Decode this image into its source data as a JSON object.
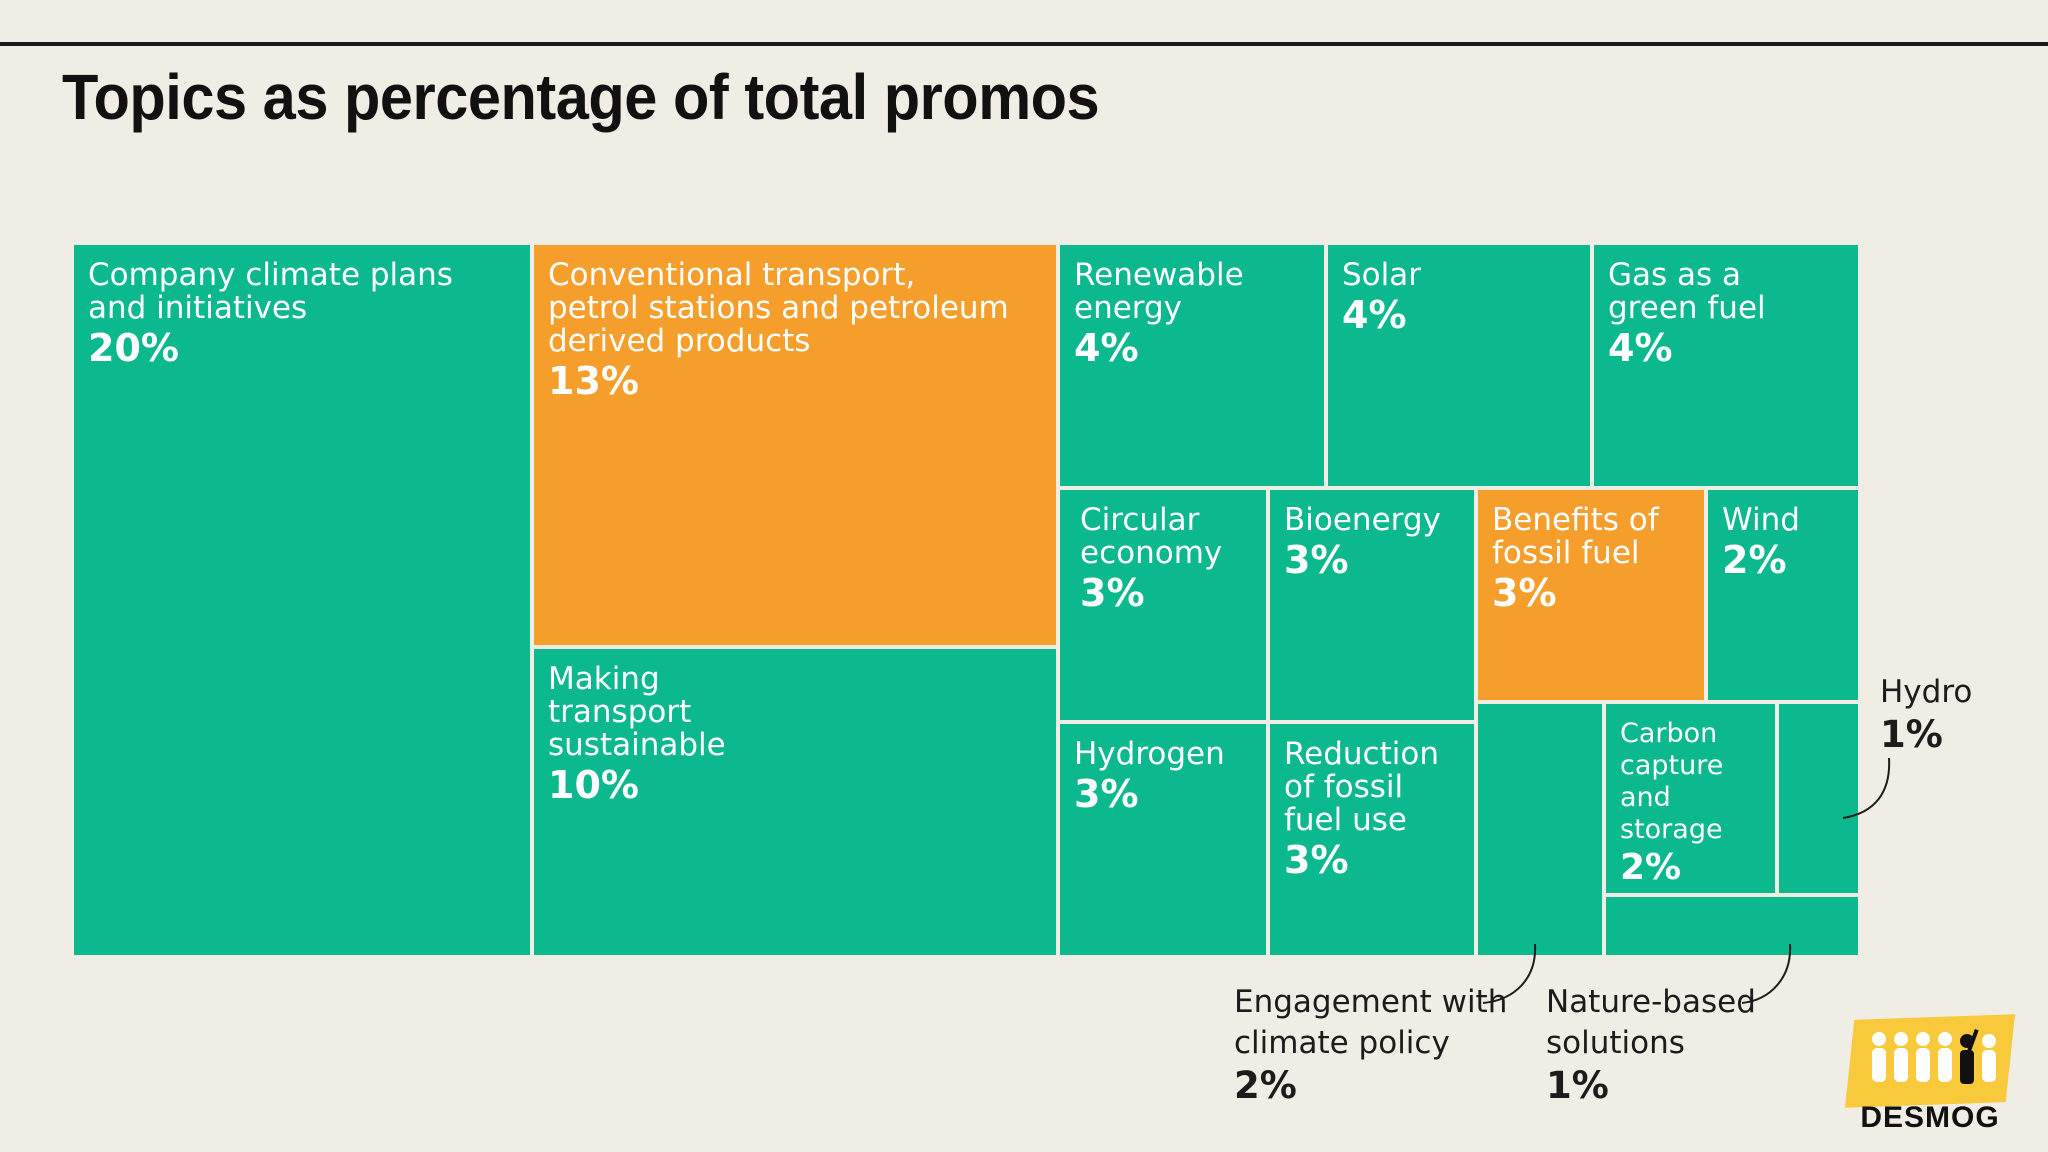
{
  "title": "Topics as percentage of total promos",
  "colors": {
    "green": "#0cb88e",
    "orange": "#f59e2c",
    "background": "#f0ede4"
  },
  "logo": {
    "word": "DESMOG"
  },
  "chart_data": {
    "type": "treemap",
    "title": "Topics as percentage of total promos",
    "unit": "%",
    "items": [
      {
        "label": "Company climate plans and initiatives",
        "value": 20,
        "value_text": "20%",
        "color": "green",
        "labeled": true
      },
      {
        "label": "Conventional transport, petrol stations and petroleum derived products",
        "value": 13,
        "value_text": "13%",
        "color": "orange",
        "labeled": true
      },
      {
        "label": "Making transport sustainable",
        "value": 10,
        "value_text": "10%",
        "color": "green",
        "labeled": true
      },
      {
        "label": "Renewable energy",
        "value": 4,
        "value_text": "4%",
        "color": "green",
        "labeled": true
      },
      {
        "label": "Solar",
        "value": 4,
        "value_text": "4%",
        "color": "green",
        "labeled": true
      },
      {
        "label": "Gas as a green fuel",
        "value": 4,
        "value_text": "4%",
        "color": "green",
        "labeled": true
      },
      {
        "label": "Circular economy",
        "value": 3,
        "value_text": "3%",
        "color": "green",
        "labeled": true
      },
      {
        "label": "Bioenergy",
        "value": 3,
        "value_text": "3%",
        "color": "green",
        "labeled": true
      },
      {
        "label": "Benefits of fossil fuel",
        "value": 3,
        "value_text": "3%",
        "color": "orange",
        "labeled": true
      },
      {
        "label": "Wind",
        "value": 2,
        "value_text": "2%",
        "color": "green",
        "labeled": true
      },
      {
        "label": "Hydrogen",
        "value": 3,
        "value_text": "3%",
        "color": "green",
        "labeled": true
      },
      {
        "label": "Reduction of fossil fuel use",
        "value": 3,
        "value_text": "3%",
        "color": "green",
        "labeled": true
      },
      {
        "label": "Engagement with climate policy",
        "value": 2,
        "value_text": "2%",
        "color": "green",
        "labeled": false
      },
      {
        "label": "Carbon capture and storage",
        "value": 2,
        "value_text": "2%",
        "color": "green",
        "labeled": true
      },
      {
        "label": "Hydro",
        "value": 1,
        "value_text": "1%",
        "color": "green",
        "labeled": false
      },
      {
        "label": "Nature-based solutions",
        "value": 1,
        "value_text": "1%",
        "color": "green",
        "labeled": false
      }
    ]
  }
}
